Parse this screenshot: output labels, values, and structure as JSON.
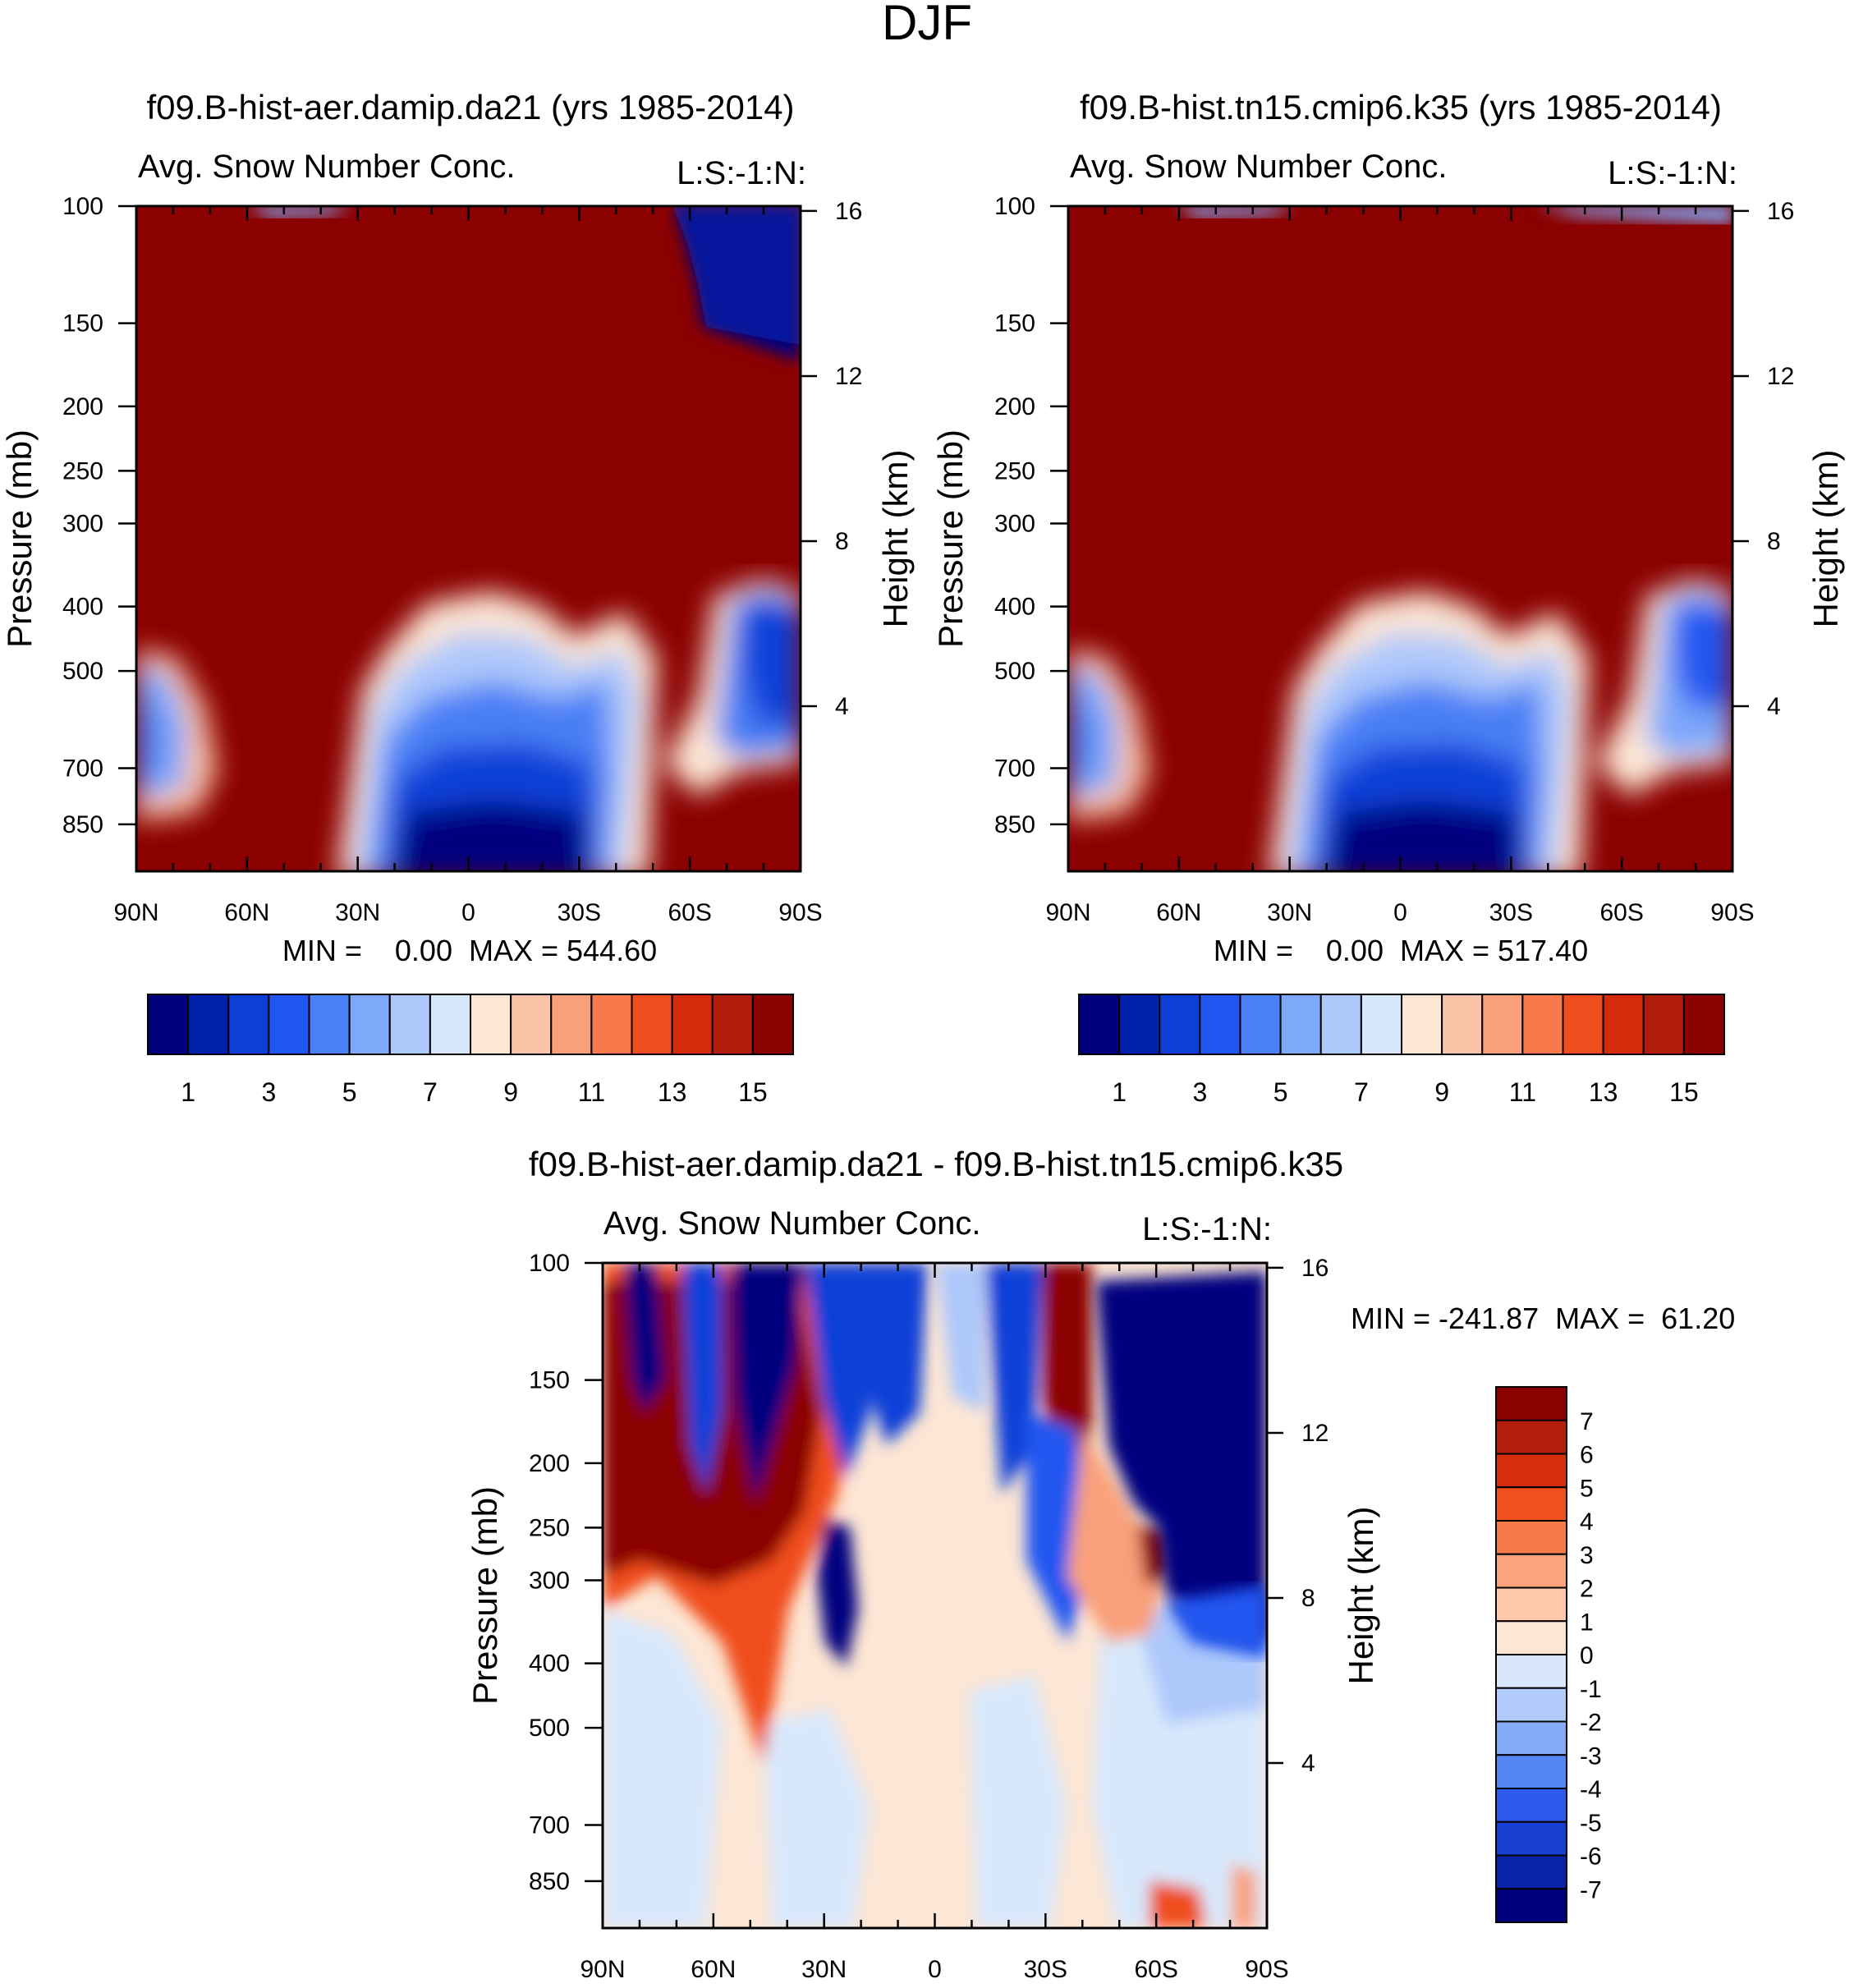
{
  "page": {
    "title": "DJF"
  },
  "colors": {
    "main_levels": [
      "#00007f",
      "#0022aa",
      "#0d3fd8",
      "#2156f0",
      "#4a7ff5",
      "#7ea8fa",
      "#adc8fb",
      "#d8e8fc",
      "#fde6d4",
      "#fbc4a8",
      "#f9a07a",
      "#f8794c",
      "#f04d1e",
      "#d52b0d",
      "#b01d0c",
      "#8b0000"
    ],
    "diff_levels": [
      "#00007f",
      "#0a23a6",
      "#1a3fd3",
      "#2e5bef",
      "#5585f4",
      "#86acf8",
      "#b3cbfb",
      "#d9e7fc",
      "#fde6d4",
      "#fcc7aa",
      "#faa37d",
      "#f77a4b",
      "#f04f1e",
      "#d42e0d",
      "#b41f0c",
      "#8b0000"
    ]
  },
  "chart_data": [
    {
      "id": "panel-left",
      "type": "heatmap",
      "title": "f09.B-hist-aer.damip.da21 (yrs 1985-2014)",
      "subtitle_left": "Avg. Snow Number Conc.",
      "subtitle_right": "L:S:-1:N:",
      "ylabel": "Pressure (mb)",
      "ylabel_right": "Height (km)",
      "x_ticks": [
        "90N",
        "60N",
        "30N",
        "0",
        "30S",
        "60S",
        "90S"
      ],
      "x_range": [
        90,
        -90
      ],
      "y_ticks": [
        "100",
        "150",
        "200",
        "250",
        "300",
        "400",
        "500",
        "700",
        "850"
      ],
      "y_range": [
        100,
        1000
      ],
      "y_right_ticks": [
        "16",
        "12",
        "8",
        "4"
      ],
      "min_max": "MIN =    0.00  MAX = 544.60",
      "colorbar_labels": [
        "1",
        "3",
        "5",
        "7",
        "9",
        "11",
        "13",
        "15"
      ]
    },
    {
      "id": "panel-right",
      "type": "heatmap",
      "title": "f09.B-hist.tn15.cmip6.k35 (yrs 1985-2014)",
      "subtitle_left": "Avg. Snow Number Conc.",
      "subtitle_right": "L:S:-1:N:",
      "ylabel": "Pressure (mb)",
      "ylabel_right": "Height (km)",
      "x_ticks": [
        "90N",
        "60N",
        "30N",
        "0",
        "30S",
        "60S",
        "90S"
      ],
      "x_range": [
        90,
        -90
      ],
      "y_ticks": [
        "100",
        "150",
        "200",
        "250",
        "300",
        "400",
        "500",
        "700",
        "850"
      ],
      "y_range": [
        100,
        1000
      ],
      "y_right_ticks": [
        "16",
        "12",
        "8",
        "4"
      ],
      "min_max": "MIN =    0.00  MAX = 517.40",
      "colorbar_labels": [
        "1",
        "3",
        "5",
        "7",
        "9",
        "11",
        "13",
        "15"
      ]
    },
    {
      "id": "panel-diff",
      "type": "heatmap",
      "title": "f09.B-hist-aer.damip.da21 - f09.B-hist.tn15.cmip6.k35",
      "subtitle_left": "Avg. Snow Number Conc.",
      "subtitle_right": "L:S:-1:N:",
      "ylabel": "Pressure (mb)",
      "ylabel_right": "Height (km)",
      "x_ticks": [
        "90N",
        "60N",
        "30N",
        "0",
        "30S",
        "60S",
        "90S"
      ],
      "x_range": [
        90,
        -90
      ],
      "y_ticks": [
        "100",
        "150",
        "200",
        "250",
        "300",
        "400",
        "500",
        "700",
        "850"
      ],
      "y_range": [
        100,
        1000
      ],
      "y_right_ticks": [
        "16",
        "12",
        "8",
        "4"
      ],
      "min_max": "MIN = -241.87  MAX =  61.20",
      "colorbar_labels": [
        "7",
        "6",
        "5",
        "4",
        "3",
        "2",
        "1",
        "0",
        "-1",
        "-2",
        "-3",
        "-4",
        "-5",
        "-6",
        "-7"
      ]
    }
  ]
}
